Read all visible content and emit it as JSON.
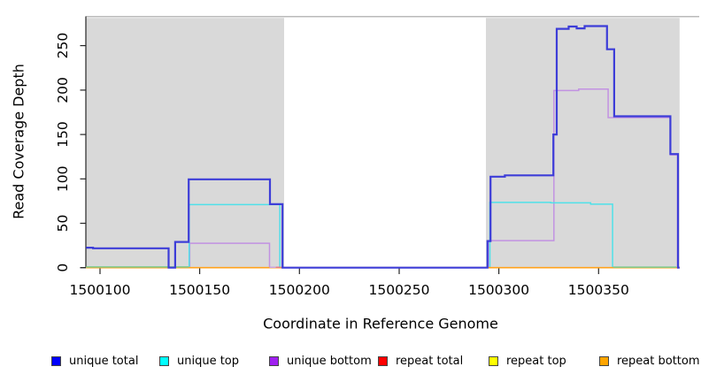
{
  "chart_data": {
    "type": "line",
    "title": "",
    "xlabel": "Coordinate in Reference Genome",
    "ylabel": "Read Coverage Depth",
    "x_ticks": [
      1500100,
      1500150,
      1500200,
      1500250,
      1500300,
      1500350
    ],
    "y_ticks": [
      0,
      50,
      100,
      150,
      200,
      250
    ],
    "xlim": [
      1500093,
      1500390.6
    ],
    "ylim": [
      0,
      283
    ],
    "grid": false,
    "legend_position": "bottom",
    "background_color": "#ffffff",
    "shaded_region_color": "#d9d9d9",
    "shaded_regions": [
      {
        "from": 1500093,
        "to": 1500192.3
      },
      {
        "from": 1500293.5,
        "to": 1500390.6
      }
    ],
    "series": [
      {
        "name": "unique total",
        "legend_color": "#0000ff",
        "line_color": "#3d3dd8",
        "width": 2.2,
        "steps": [
          [
            1500093,
            22.5
          ],
          [
            1500096.5,
            21.8
          ],
          [
            1500134.4,
            0
          ],
          [
            1500137.7,
            29
          ],
          [
            1500144.5,
            99.5
          ],
          [
            1500185.2,
            71.5
          ],
          [
            1500191.5,
            0
          ],
          [
            1500294.3,
            30
          ],
          [
            1500295.8,
            102.5
          ],
          [
            1500303,
            104
          ],
          [
            1500327.3,
            150
          ],
          [
            1500329,
            269
          ],
          [
            1500335,
            271.5
          ],
          [
            1500339,
            269.5
          ],
          [
            1500343,
            272
          ],
          [
            1500354.2,
            246
          ],
          [
            1500357.8,
            170.5
          ],
          [
            1500386,
            128
          ],
          [
            1500389.8,
            0
          ]
        ],
        "end": 1500390.6
      },
      {
        "name": "unique top",
        "legend_color": "#00ffff",
        "line_color": "#4fe1e9",
        "width": 1.5,
        "steps": [
          [
            1500093,
            0
          ],
          [
            1500144.7,
            71
          ],
          [
            1500190.2,
            0
          ],
          [
            1500295.5,
            73.5
          ],
          [
            1500326,
            73
          ],
          [
            1500346,
            71.5
          ],
          [
            1500357,
            0
          ]
        ],
        "end": 1500390.6
      },
      {
        "name": "unique bottom",
        "legend_color": "#a020f0",
        "line_color": "#c292e2",
        "width": 1.5,
        "steps": [
          [
            1500093,
            0
          ],
          [
            1500145,
            27.5
          ],
          [
            1500185,
            0
          ],
          [
            1500294.8,
            30.5
          ],
          [
            1500327.6,
            199.5
          ],
          [
            1500340,
            201
          ],
          [
            1500354.8,
            169
          ],
          [
            1500386,
            127
          ],
          [
            1500389.6,
            0
          ]
        ],
        "end": 1500390.6
      },
      {
        "name": "repeat total",
        "legend_color": "#ff0000",
        "line_color": "#e35050",
        "width": 1.2,
        "steps": [
          [
            1500093,
            0
          ]
        ],
        "end": 1500390.6
      },
      {
        "name": "repeat top",
        "legend_color": "#ffff00",
        "line_color": "#f2f25a",
        "width": 1.2,
        "steps": [
          [
            1500093,
            0
          ]
        ],
        "end": 1500390.6
      },
      {
        "name": "repeat bottom",
        "legend_color": "#ffa500",
        "line_color": "#ffa21c",
        "width": 1.7,
        "steps": [
          [
            1500093,
            0
          ]
        ],
        "end": 1500390.6
      }
    ],
    "zero_overlap_segments": [
      {
        "from": 1500093,
        "to": 1500144.5,
        "color": "#7ccb8f",
        "dy": -0.8
      },
      {
        "from": 1500185,
        "to": 1500188.2,
        "color": "#c9a3e1",
        "dy": -0.4
      },
      {
        "from": 1500188.2,
        "to": 1500190.8,
        "color": "#e57f86",
        "dy": -0.4
      },
      {
        "from": 1500357.3,
        "to": 1500389,
        "color": "#7ccb8f",
        "dy": -0.6
      }
    ]
  },
  "axis_style": {
    "axis_color": "#262626",
    "tick_label_color": "#000000",
    "top_border_color": "#a4a4a4"
  },
  "legend": {
    "items": [
      {
        "label": "unique total",
        "color": "#0000ff"
      },
      {
        "label": "unique top",
        "color": "#00ffff"
      },
      {
        "label": "unique bottom",
        "color": "#a020f0"
      },
      {
        "label": "repeat total",
        "color": "#ff0000"
      },
      {
        "label": "repeat top",
        "color": "#ffff00"
      },
      {
        "label": "repeat bottom",
        "color": "#ffa500"
      }
    ]
  }
}
